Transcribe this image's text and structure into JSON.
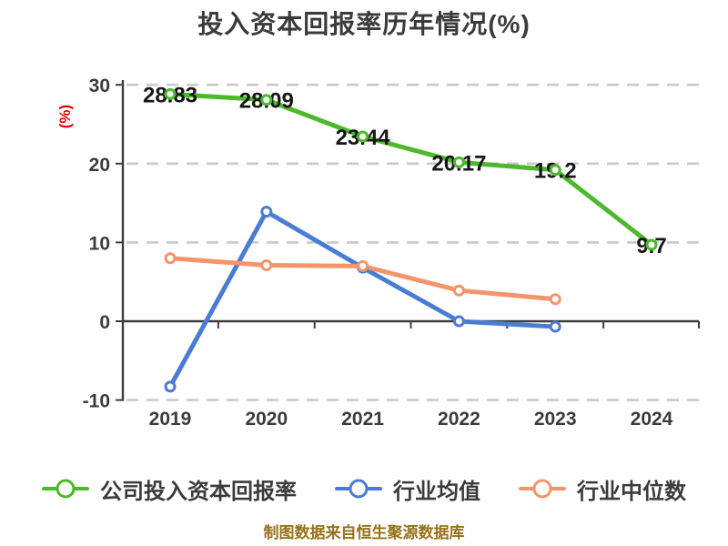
{
  "chart_data": {
    "type": "line",
    "title": "投入资本回报率历年情况(%)",
    "ylabel": "(%)",
    "source_note": "制图数据来自恒生聚源数据库",
    "categories": [
      "2019",
      "2020",
      "2021",
      "2022",
      "2023",
      "2024"
    ],
    "yticks": [
      30,
      20,
      10,
      0,
      -10
    ],
    "ylim": [
      -10,
      30
    ],
    "grid": "horizontal-dashed",
    "legend_position": "bottom",
    "series": [
      {
        "id": "company-roic",
        "name": "公司投入资本回报率",
        "color": "#4CB82B",
        "values": [
          28.83,
          28.09,
          23.44,
          20.17,
          19.2,
          9.7
        ],
        "point_labels": [
          "28.83",
          "28.09",
          "23.44",
          "20.17",
          "19.2",
          "9.7"
        ],
        "show_labels": true
      },
      {
        "id": "industry-mean",
        "name": "行业均值",
        "color": "#4A7CD4",
        "values": [
          -8.3,
          13.9,
          6.8,
          0,
          -0.7,
          null
        ],
        "show_labels": false
      },
      {
        "id": "industry-median",
        "name": "行业中位数",
        "color": "#F3946A",
        "values": [
          8,
          7.1,
          7,
          3.9,
          2.8,
          null
        ],
        "show_labels": false
      }
    ]
  },
  "colors": {
    "background": "#FFFFFF",
    "title_text": "#3B3B3B",
    "axis": "#3C3C3C",
    "tick_label": "#3C3C3C",
    "gridline": "#C9C9C9",
    "ylabel_text": "#E60000",
    "data_label": "#161616",
    "marker_fill": "#FFFFFF",
    "source_note_text": "#97711B"
  }
}
